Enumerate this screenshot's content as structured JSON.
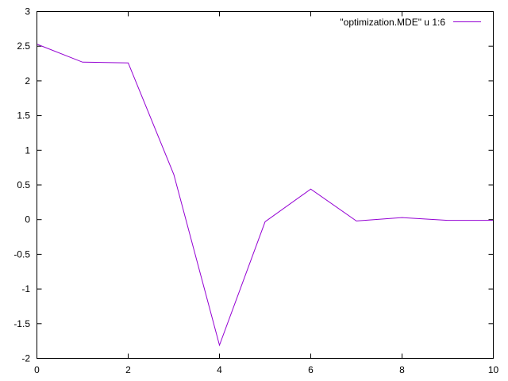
{
  "chart_data": {
    "type": "line",
    "title": "",
    "xlabel": "",
    "ylabel": "",
    "xlim": [
      0,
      10
    ],
    "ylim": [
      -2,
      3
    ],
    "xticks": [
      0,
      2,
      4,
      6,
      8,
      10
    ],
    "yticks": [
      -2,
      -1.5,
      -1,
      -0.5,
      0,
      0.5,
      1,
      1.5,
      2,
      2.5,
      3
    ],
    "xtick_labels": [
      "0",
      "2",
      "4",
      "6",
      "8",
      "10"
    ],
    "ytick_labels": [
      "-2",
      "-1.5",
      "-1",
      "-0.5",
      "0",
      "0.5",
      "1",
      "1.5",
      "2",
      "2.5",
      "3"
    ],
    "grid": false,
    "legend_position": "top-right",
    "series": [
      {
        "name": "\"optimization.MDE\" u 1:6",
        "color": "#9400d3",
        "x": [
          0,
          1,
          2,
          3,
          4,
          5,
          6,
          7,
          8,
          9,
          10
        ],
        "y": [
          2.53,
          2.27,
          2.26,
          0.65,
          -1.81,
          -0.03,
          0.44,
          -0.02,
          0.03,
          -0.01,
          -0.01
        ]
      }
    ]
  }
}
